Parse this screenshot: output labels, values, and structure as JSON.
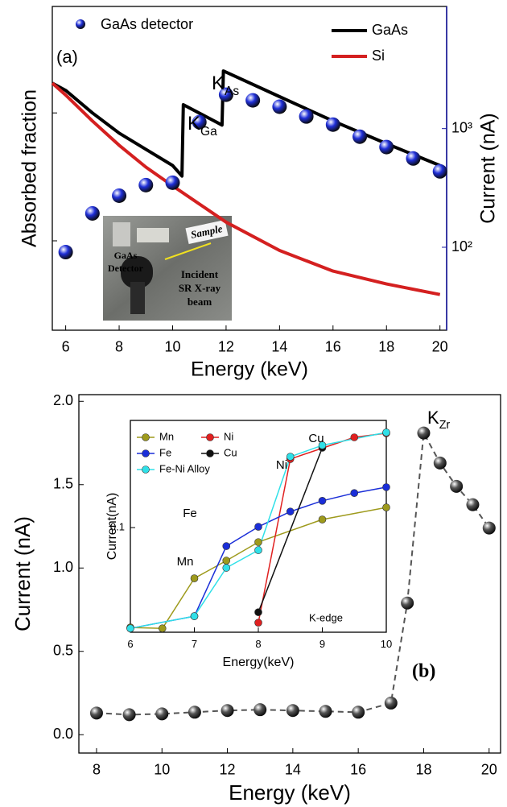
{
  "chart_data": [
    {
      "type": "line",
      "panel_label": "(a)",
      "x_label": "Energy (keV)",
      "y_label": "Absorbed fraction",
      "y2_label": "Current (nA)",
      "xlim": [
        5.5,
        20.25
      ],
      "xticks": [
        6,
        8,
        10,
        12,
        14,
        16,
        18,
        20
      ],
      "ylim": [
        0.002,
        0.68
      ],
      "ylog": true,
      "yticks": [
        0.01,
        0.1
      ],
      "ytick_labels": false,
      "y2lim": [
        20,
        10700
      ],
      "y2log": true,
      "y2ticks": [
        {
          "value": 100,
          "label": "10²"
        },
        {
          "value": 1000,
          "label": "10³"
        }
      ],
      "y2_color": "#1c1ca0",
      "series": [
        {
          "name": "GaAs detector",
          "color": "#1f2fd8",
          "marker": "sphere",
          "line": false,
          "axis": "y2",
          "x": [
            6,
            7,
            8,
            9,
            10,
            11,
            12,
            13,
            14,
            15,
            16,
            17,
            18,
            19,
            20
          ],
          "values": [
            91,
            193,
            272,
            334,
            350,
            1133,
            1930,
            1730,
            1530,
            1265,
            1080,
            855,
            699,
            560,
            436
          ]
        },
        {
          "name": "GaAs",
          "color": "#000000",
          "x": [
            5.5,
            6,
            7,
            8,
            9,
            10,
            10.35,
            10.4,
            11.85,
            11.9,
            14,
            16,
            18,
            20
          ],
          "values": [
            0.171,
            0.15,
            0.1,
            0.0695,
            0.0519,
            0.0388,
            0.0321,
            0.116,
            0.0803,
            0.213,
            0.134,
            0.0865,
            0.0575,
            0.0388
          ]
        },
        {
          "name": "Si",
          "color": "#d42020",
          "x": [
            5.5,
            6,
            7,
            8,
            9,
            10,
            12,
            14,
            16,
            18,
            20
          ],
          "values": [
            0.171,
            0.138,
            0.0865,
            0.0558,
            0.0377,
            0.0269,
            0.014,
            0.0084,
            0.0058,
            0.0046,
            0.0038
          ]
        }
      ],
      "edge_labels": [
        {
          "main": "K",
          "sub": "Ga"
        },
        {
          "main": "K",
          "sub": "As"
        }
      ],
      "photo_labels": {
        "sample": "Sample",
        "detector": [
          "GaAs",
          "Detector"
        ],
        "beam": [
          "Incident",
          "SR X-ray",
          "beam"
        ]
      }
    },
    {
      "type": "line",
      "panel_label": "(b)",
      "x_label": "Energy (keV)",
      "y_label": "Current (nA)",
      "xlim": [
        7.46,
        20.35
      ],
      "xticks": [
        8,
        10,
        12,
        14,
        16,
        18,
        20
      ],
      "ylim": [
        -0.11,
        2.04
      ],
      "yticks": [
        {
          "value": 0,
          "label": "0.0"
        },
        0.5,
        {
          "value": 1,
          "label": "1.0"
        },
        1.5,
        {
          "value": 2,
          "label": "2.0"
        }
      ],
      "color": "#555555",
      "marker": "sphere",
      "dash": true,
      "x": [
        8,
        9,
        10,
        11,
        12,
        13,
        14,
        15,
        16,
        17,
        17.5,
        18,
        18.5,
        19,
        19.5,
        20
      ],
      "values": [
        0.13,
        0.12,
        0.125,
        0.135,
        0.145,
        0.15,
        0.145,
        0.14,
        0.135,
        0.19,
        0.79,
        1.81,
        1.63,
        1.49,
        1.38,
        1.24
      ],
      "edge_labels": [
        {
          "main": "K",
          "sub": "Zr"
        }
      ]
    },
    {
      "type": "line",
      "x_label": "Energy(keV)",
      "y_label": "Current(nA)",
      "xlim": [
        6,
        10
      ],
      "xticks": [
        6,
        7,
        8,
        9,
        10
      ],
      "ylim": [
        0.019,
        0.548
      ],
      "ylog": true,
      "yticks": [
        0.1
      ],
      "series": [
        {
          "name": "Mn",
          "color": "#9e9a1c",
          "marker": "dot",
          "x": [
            6,
            6.5,
            7,
            7.5,
            8,
            9,
            10
          ],
          "values": [
            0.0205,
            0.0202,
            0.0447,
            0.0592,
            0.0794,
            0.1137,
            0.1377
          ]
        },
        {
          "name": "Ni",
          "color": "#e02020",
          "marker": "dot",
          "x": [
            8,
            8.5,
            9.5,
            10
          ],
          "values": [
            0.0221,
            0.297,
            0.419,
            0.447
          ]
        },
        {
          "name": "Fe",
          "color": "#1a2ed8",
          "marker": "dot",
          "x": [
            6,
            7,
            7.5,
            8,
            8.5,
            9,
            9.5,
            10
          ],
          "values": [
            0.0202,
            0.0245,
            0.0745,
            0.1013,
            0.129,
            0.153,
            0.173,
            0.19
          ]
        },
        {
          "name": "Cu",
          "color": "#111111",
          "marker": "dot",
          "x": [
            8,
            9
          ],
          "values": [
            0.0261,
            0.355
          ]
        },
        {
          "name": "Fe-Ni Alloy",
          "color": "#30e0e8",
          "marker": "dot",
          "x": [
            6,
            7,
            7.5,
            8,
            8.5,
            9,
            10
          ],
          "values": [
            0.0202,
            0.0245,
            0.0528,
            0.0699,
            0.308,
            0.369,
            0.453
          ]
        }
      ],
      "annotations": [
        "Fe",
        "Mn",
        "Ni",
        "Cu",
        "K-edge"
      ]
    }
  ]
}
